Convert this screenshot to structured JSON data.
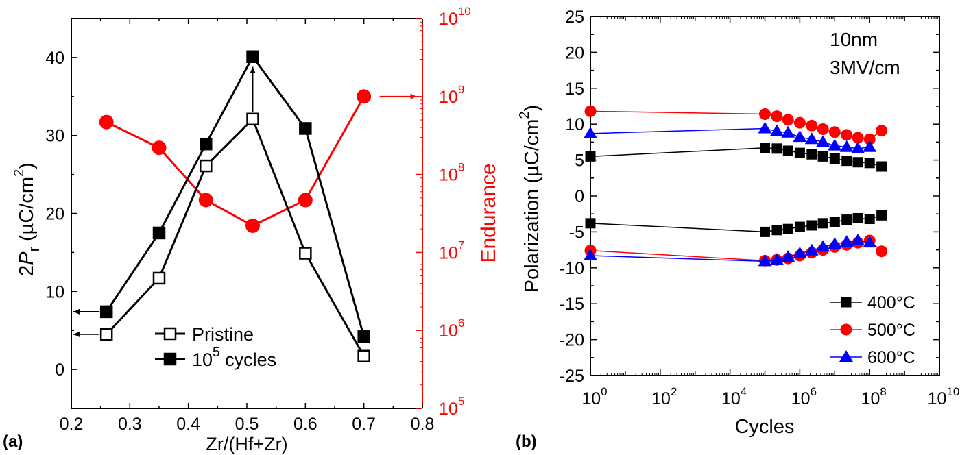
{
  "chart_data": [
    {
      "panel_label": "(a)",
      "type": "line",
      "xlabel": "Zr/(Hf+Zr)",
      "ylabel": {
        "prefix": "2",
        "var": "P",
        "sub": "r",
        "unit": " (µC/cm",
        "sup": "2",
        "close": ")"
      },
      "y2label": "Endurance",
      "xlim": [
        0.2,
        0.8
      ],
      "ylim": [
        -5,
        45
      ],
      "y2lim": [
        100000.0,
        10000000000.0
      ],
      "y2scale": "log",
      "x_ticks": [
        "0.2",
        "0.3",
        "0.4",
        "0.5",
        "0.6",
        "0.7",
        "0.8"
      ],
      "y_ticks": [
        "0",
        "10",
        "20",
        "30",
        "40"
      ],
      "y2_ticks": [
        {
          "base": "10",
          "exp": "5"
        },
        {
          "base": "10",
          "exp": "6"
        },
        {
          "base": "10",
          "exp": "7"
        },
        {
          "base": "10",
          "exp": "8"
        },
        {
          "base": "10",
          "exp": "9"
        },
        {
          "base": "10",
          "exp": "10"
        }
      ],
      "x": [
        0.26,
        0.35,
        0.43,
        0.51,
        0.6,
        0.7
      ],
      "series": [
        {
          "name": "Pristine",
          "axis": "left",
          "marker": "open-square",
          "color": "#000000",
          "values": [
            4.5,
            11.7,
            26.1,
            32.1,
            14.9,
            1.7
          ]
        },
        {
          "name": "10^5 cycles",
          "name_parts": {
            "base": "10",
            "exp": "5",
            "rest": " cycles"
          },
          "axis": "left",
          "marker": "filled-square",
          "color": "#000000",
          "values": [
            7.4,
            17.5,
            28.9,
            40.1,
            30.9,
            4.2
          ]
        },
        {
          "axis": "right",
          "marker": "filled-circle",
          "color": "#ff0000",
          "values": [
            470000000.0,
            220000000.0,
            47000000.0,
            22000000.0,
            47000000.0,
            1000000000.0
          ]
        }
      ],
      "legend_position": "bottom-center",
      "grid": false
    },
    {
      "panel_label": "(b)",
      "type": "scatter",
      "xlabel": "Cycles",
      "ylabel": {
        "text": "Polarization (µC/cm",
        "sup": "2",
        "close": ")"
      },
      "xscale": "log",
      "xlim": [
        1,
        10000000000.0
      ],
      "ylim": [
        -25,
        25
      ],
      "x_ticks": [
        {
          "base": "10",
          "exp": "0"
        },
        {
          "base": "10",
          "exp": "2"
        },
        {
          "base": "10",
          "exp": "4"
        },
        {
          "base": "10",
          "exp": "6"
        },
        {
          "base": "10",
          "exp": "8"
        },
        {
          "base": "10",
          "exp": "10"
        }
      ],
      "y_ticks": [
        "-25",
        "-20",
        "-15",
        "-10",
        "-5",
        "0",
        "5",
        "10",
        "15",
        "20",
        "25"
      ],
      "annotations": [
        "10nm",
        "3MV/cm"
      ],
      "x": [
        1,
        100000.0,
        220000.0,
        460000.0,
        1000000.0,
        2200000.0,
        4600000.0,
        10000000.0,
        22000000.0,
        46000000.0,
        100000000.0,
        220000000.0
      ],
      "series": [
        {
          "name": "400°C",
          "marker": "square",
          "color": "#000000",
          "positive": [
            5.5,
            6.7,
            6.6,
            6.3,
            6.0,
            5.8,
            5.5,
            5.2,
            4.9,
            4.7,
            4.6,
            4.1
          ],
          "negative": [
            -3.8,
            -5.0,
            -4.75,
            -4.6,
            -4.3,
            -4.1,
            -3.8,
            -3.6,
            -3.3,
            -3.1,
            -3.2,
            -2.7
          ]
        },
        {
          "name": "500°C",
          "marker": "circle",
          "color": "#ff0000",
          "positive": [
            11.8,
            11.4,
            11.1,
            10.6,
            10.2,
            9.8,
            9.3,
            8.9,
            8.5,
            8.1,
            7.9,
            9.1
          ],
          "negative": [
            -7.6,
            -9.0,
            -8.9,
            -8.7,
            -8.3,
            -7.9,
            -7.5,
            -7.1,
            -6.8,
            -6.5,
            -6.2,
            -7.7
          ]
        },
        {
          "name": "600°C",
          "marker": "triangle",
          "color": "#0000ff",
          "positive": [
            8.7,
            9.4,
            9.0,
            8.8,
            8.2,
            7.9,
            7.5,
            7.0,
            6.8,
            6.6,
            6.8,
            null
          ],
          "negative": [
            -8.3,
            -9.1,
            -8.9,
            -8.5,
            -8.0,
            -7.6,
            -7.1,
            -6.7,
            -6.4,
            -6.2,
            -6.5,
            null
          ]
        }
      ],
      "legend_position": "bottom-right",
      "grid": false
    }
  ]
}
